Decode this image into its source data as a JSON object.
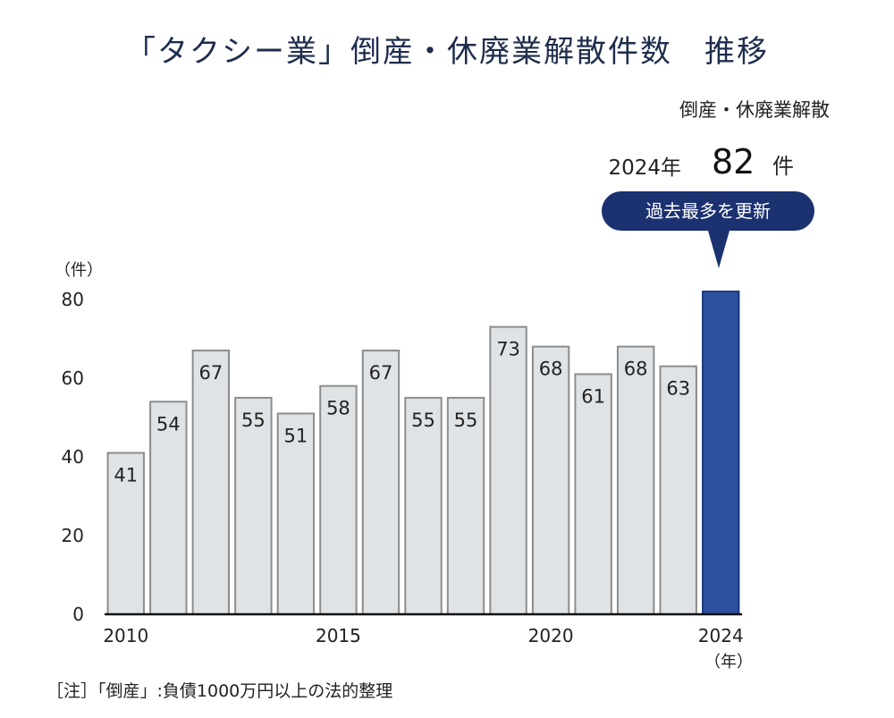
{
  "title": "「タクシー業」倒産・休廃業解散件数　推移",
  "callout": {
    "label": "倒産・休廃業解散",
    "year": "2024年",
    "count": "82",
    "unit": "件",
    "badge": "過去最多を更新"
  },
  "chart_data": {
    "type": "bar",
    "x": [
      2010,
      2011,
      2012,
      2013,
      2014,
      2015,
      2016,
      2017,
      2018,
      2019,
      2020,
      2021,
      2022,
      2023,
      2024
    ],
    "values": [
      41,
      54,
      67,
      55,
      51,
      58,
      67,
      55,
      55,
      73,
      68,
      61,
      68,
      63,
      82
    ],
    "data_labels": [
      "41",
      "54",
      "67",
      "55",
      "51",
      "58",
      "67",
      "55",
      "55",
      "73",
      "68",
      "61",
      "68",
      "63",
      ""
    ],
    "y_ticks": [
      0,
      20,
      40,
      60,
      80
    ],
    "x_ticks": [
      "2010",
      "2015",
      "2020",
      "2024"
    ],
    "ylim": [
      0,
      82
    ],
    "ylabel": "（件）",
    "xlabel": "（年）",
    "colors": {
      "default_bar": "#dfe3e6",
      "default_border": "#8c8c8c",
      "highlight_bar": "#2d4f9e",
      "highlight_border": "#1c3a80"
    }
  },
  "note": "［注］「倒産」:負債1000万円以上の法的整理"
}
